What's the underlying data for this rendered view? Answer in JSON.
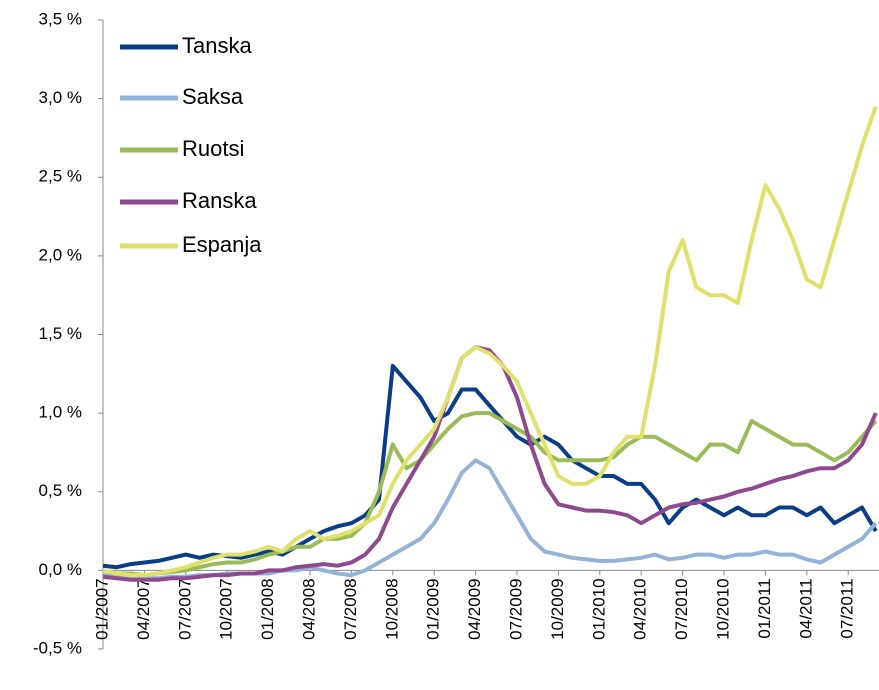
{
  "chart_data": {
    "type": "line",
    "categories": [
      "01/2007",
      null,
      null,
      "04/2007",
      null,
      null,
      "07/2007",
      null,
      null,
      "10/2007",
      null,
      null,
      "01/2008",
      null,
      null,
      "04/2008",
      null,
      null,
      "07/2008",
      null,
      null,
      "10/2008",
      null,
      null,
      "01/2009",
      null,
      null,
      "04/2009",
      null,
      null,
      "07/2009",
      null,
      null,
      "10/2009",
      null,
      null,
      "01/2010",
      null,
      null,
      "04/2010",
      null,
      null,
      "07/2010",
      null,
      null,
      "10/2010",
      null,
      null,
      "01/2011",
      null,
      null,
      "04/2011",
      null,
      null,
      "07/2011",
      null,
      null
    ],
    "ylim": [
      -0.5,
      3.5
    ],
    "yticks": [
      {
        "value": -0.5,
        "label": "-0,5 %"
      },
      {
        "value": 0,
        "label": "0,0 %"
      },
      {
        "value": 0.5,
        "label": "0,5 %"
      },
      {
        "value": 1,
        "label": "1,0 %"
      },
      {
        "value": 1.5,
        "label": "1,5 %"
      },
      {
        "value": 2,
        "label": "2,0 %"
      },
      {
        "value": 2.5,
        "label": "2,5 %"
      },
      {
        "value": 3,
        "label": "3,0 %"
      },
      {
        "value": 3.5,
        "label": "3,5 %"
      }
    ],
    "legend": "top-left",
    "series": [
      {
        "name": "Tanska",
        "color": "#0b3d87",
        "values": [
          0.03,
          0.02,
          0.04,
          0.05,
          0.06,
          0.08,
          0.1,
          0.08,
          0.1,
          0.09,
          0.08,
          0.1,
          0.12,
          0.1,
          0.15,
          0.2,
          0.25,
          0.28,
          0.3,
          0.35,
          0.45,
          1.3,
          1.2,
          1.1,
          0.95,
          1.0,
          1.15,
          1.15,
          1.05,
          0.95,
          0.85,
          0.8,
          0.85,
          0.8,
          0.7,
          0.65,
          0.6,
          0.6,
          0.55,
          0.55,
          0.45,
          0.3,
          0.4,
          0.45,
          0.4,
          0.35,
          0.4,
          0.35,
          0.35,
          0.4,
          0.4,
          0.35,
          0.4,
          0.3,
          0.35,
          0.4,
          0.25
        ]
      },
      {
        "name": "Saksa",
        "color": "#95b3d7",
        "values": [
          -0.03,
          -0.04,
          -0.05,
          -0.05,
          -0.05,
          -0.04,
          -0.04,
          -0.03,
          -0.03,
          -0.02,
          -0.02,
          -0.02,
          -0.02,
          0,
          0,
          0.02,
          0,
          -0.02,
          -0.03,
          0,
          0.05,
          0.1,
          0.15,
          0.2,
          0.3,
          0.45,
          0.62,
          0.7,
          0.65,
          0.5,
          0.35,
          0.2,
          0.12,
          0.1,
          0.08,
          0.07,
          0.06,
          0.06,
          0.07,
          0.08,
          0.1,
          0.07,
          0.08,
          0.1,
          0.1,
          0.08,
          0.1,
          0.1,
          0.12,
          0.1,
          0.1,
          0.07,
          0.05,
          0.1,
          0.15,
          0.2,
          0.3
        ]
      },
      {
        "name": "Ruotsi",
        "color": "#9bbb59",
        "values": [
          0,
          -0.02,
          -0.02,
          -0.03,
          -0.02,
          -0.01,
          0,
          0.02,
          0.04,
          0.05,
          0.05,
          0.07,
          0.1,
          0.12,
          0.15,
          0.15,
          0.2,
          0.2,
          0.22,
          0.3,
          0.5,
          0.8,
          0.65,
          0.7,
          0.8,
          0.9,
          0.98,
          1.0,
          1.0,
          0.95,
          0.9,
          0.85,
          0.75,
          0.7,
          0.7,
          0.7,
          0.7,
          0.72,
          0.8,
          0.85,
          0.85,
          0.8,
          0.75,
          0.7,
          0.8,
          0.8,
          0.75,
          0.95,
          0.9,
          0.85,
          0.8,
          0.8,
          0.75,
          0.7,
          0.75,
          0.85,
          0.95
        ]
      },
      {
        "name": "Ranska",
        "color": "#8e4a8e",
        "values": [
          -0.04,
          -0.05,
          -0.06,
          -0.06,
          -0.06,
          -0.05,
          -0.05,
          -0.04,
          -0.03,
          -0.03,
          -0.02,
          -0.02,
          0,
          0,
          0.02,
          0.03,
          0.04,
          0.03,
          0.05,
          0.1,
          0.2,
          0.4,
          0.55,
          0.7,
          0.85,
          1.1,
          1.35,
          1.42,
          1.4,
          1.3,
          1.1,
          0.8,
          0.55,
          0.42,
          0.4,
          0.38,
          0.38,
          0.37,
          0.35,
          0.3,
          0.35,
          0.4,
          0.42,
          0.43,
          0.45,
          0.47,
          0.5,
          0.52,
          0.55,
          0.58,
          0.6,
          0.63,
          0.65,
          0.65,
          0.7,
          0.8,
          1.0
        ]
      },
      {
        "name": "Espanja",
        "color": "#dfe26a",
        "values": [
          0,
          -0.02,
          -0.03,
          -0.03,
          -0.02,
          0,
          0.02,
          0.05,
          0.08,
          0.1,
          0.1,
          0.12,
          0.15,
          0.12,
          0.2,
          0.25,
          0.2,
          0.22,
          0.25,
          0.3,
          0.35,
          0.55,
          0.7,
          0.8,
          0.9,
          1.1,
          1.35,
          1.42,
          1.38,
          1.3,
          1.2,
          1.0,
          0.8,
          0.6,
          0.55,
          0.55,
          0.6,
          0.75,
          0.85,
          0.85,
          1.3,
          1.9,
          2.1,
          1.8,
          1.75,
          1.75,
          1.7,
          2.1,
          2.45,
          2.3,
          2.1,
          1.85,
          1.8,
          2.1,
          2.4,
          2.7,
          2.95
        ]
      }
    ]
  }
}
